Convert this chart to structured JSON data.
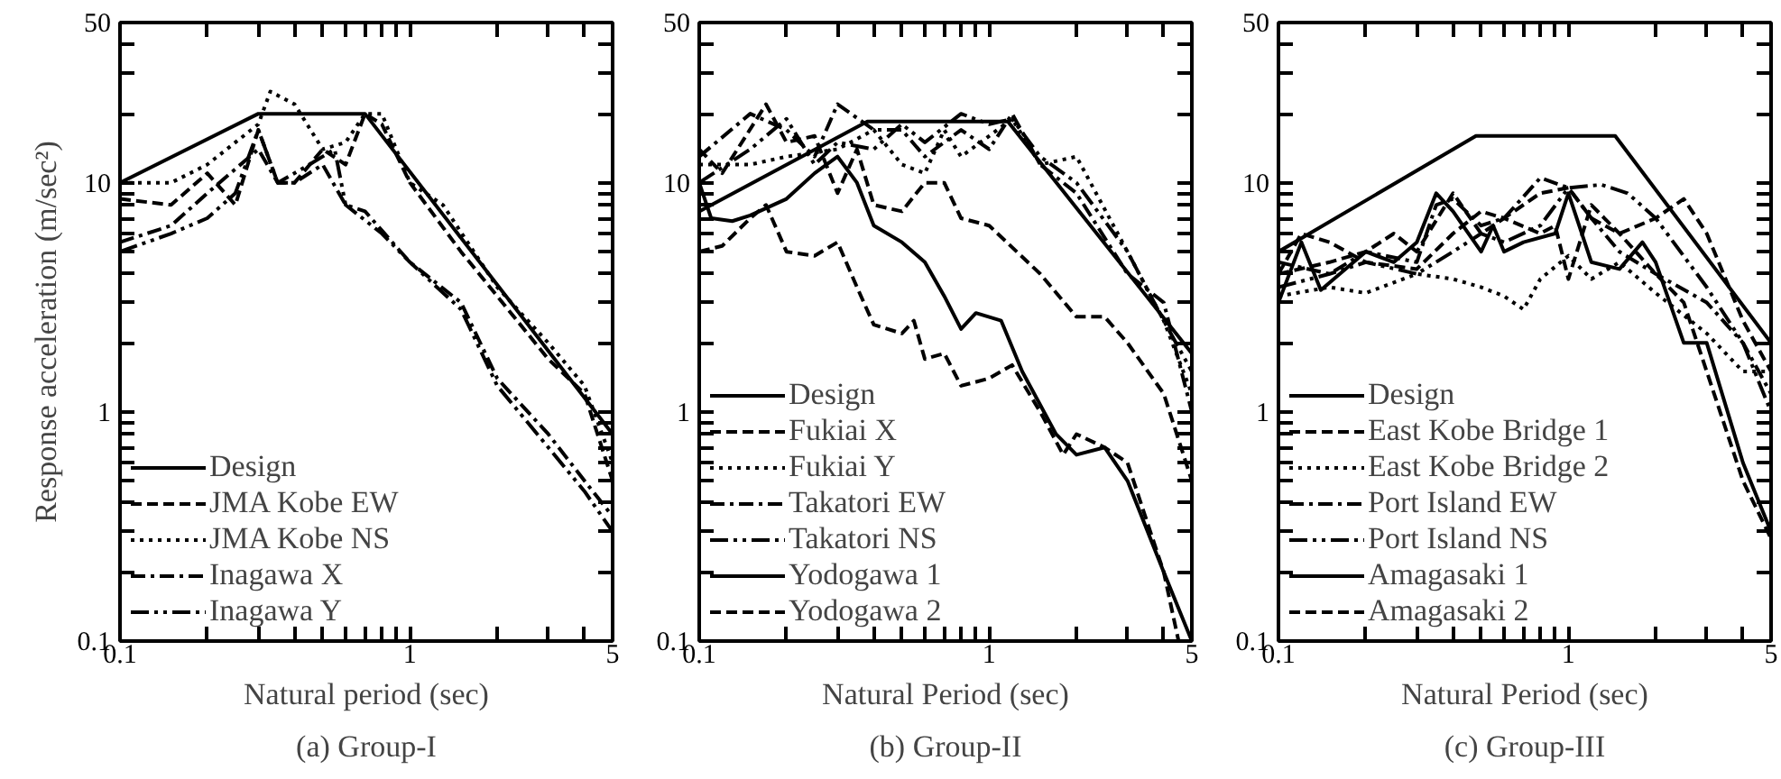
{
  "chart_data": [
    {
      "type": "line",
      "title": "(a) Group-I",
      "xlabel": "Natural period (sec)",
      "ylabel": "Response acceleration (m/sec²)",
      "log": "xy",
      "grid": false,
      "legend": "bottom left",
      "xlim": [
        0.1,
        5
      ],
      "ylim": [
        0.1,
        50
      ],
      "xticks": [
        0.1,
        {
          "value": 0.2,
          "label": null
        },
        {
          "value": 0.3,
          "label": null
        },
        {
          "value": 0.4,
          "label": null
        },
        {
          "value": 0.5,
          "label": null
        },
        {
          "value": 0.6,
          "label": null
        },
        {
          "value": 0.7,
          "label": null
        },
        {
          "value": 0.8,
          "label": null
        },
        {
          "value": 0.9,
          "label": null
        },
        1,
        {
          "value": 2,
          "label": null
        },
        {
          "value": 3,
          "label": null
        },
        {
          "value": 4,
          "label": null
        },
        5
      ],
      "yticks": [
        0.1,
        {
          "value": 0.2,
          "label": null
        },
        {
          "value": 0.3,
          "label": null
        },
        {
          "value": 0.4,
          "label": null
        },
        {
          "value": 0.5,
          "label": null
        },
        {
          "value": 0.6,
          "label": null
        },
        {
          "value": 0.7,
          "label": null
        },
        {
          "value": 0.8,
          "label": null
        },
        {
          "value": 0.9,
          "label": null
        },
        1,
        {
          "value": 2,
          "label": null
        },
        {
          "value": 3,
          "label": null
        },
        {
          "value": 4,
          "label": null
        },
        {
          "value": 5,
          "label": null
        },
        {
          "value": 6,
          "label": null
        },
        {
          "value": 7,
          "label": null
        },
        {
          "value": 8,
          "label": null
        },
        {
          "value": 9,
          "label": null
        },
        10,
        {
          "value": 20,
          "label": null
        },
        {
          "value": 30,
          "label": null
        },
        {
          "value": 40,
          "label": null
        },
        50
      ],
      "series": [
        {
          "name": "Design",
          "color": "#000000",
          "line_style": "solid",
          "x": [
            0.1,
            0.3,
            0.7,
            5
          ],
          "values": [
            10,
            20,
            20,
            0.8
          ]
        },
        {
          "name": "JMA Kobe EW",
          "color": "#000000",
          "line_style": "dashed",
          "x": [
            0.1,
            0.15,
            0.2,
            0.25,
            0.3,
            0.35,
            0.4,
            0.5,
            0.6,
            0.7,
            0.8,
            1,
            1.5,
            2,
            3,
            4,
            5
          ],
          "values": [
            8.5,
            8,
            11,
            8,
            17,
            10,
            10,
            14,
            12,
            20,
            18,
            10,
            5,
            3.2,
            1.7,
            1.2,
            0.5
          ]
        },
        {
          "name": "JMA Kobe NS",
          "color": "#000000",
          "line_style": "dotted",
          "x": [
            0.1,
            0.15,
            0.2,
            0.3,
            0.33,
            0.4,
            0.5,
            0.6,
            0.7,
            0.8,
            1,
            1.3,
            2,
            3,
            4,
            5
          ],
          "values": [
            10,
            10,
            12,
            18,
            25,
            22,
            14,
            15,
            20,
            20,
            10,
            8,
            3.5,
            2,
            1.3,
            0.6
          ]
        },
        {
          "name": "Inagawa X",
          "color": "#000000",
          "line_style": "dashdot",
          "x": [
            0.1,
            0.15,
            0.2,
            0.3,
            0.35,
            0.4,
            0.5,
            0.6,
            0.7,
            1,
            1.5,
            2,
            3,
            4,
            5
          ],
          "values": [
            5.5,
            6.5,
            9,
            14,
            10,
            10,
            12,
            8,
            7.5,
            4.5,
            3,
            1.4,
            0.8,
            0.5,
            0.35
          ]
        },
        {
          "name": "Inagawa Y",
          "color": "#000000",
          "line_style": "longdashdot",
          "x": [
            0.1,
            0.15,
            0.2,
            0.25,
            0.3,
            0.35,
            0.45,
            0.55,
            0.6,
            0.8,
            1,
            1.5,
            2,
            3,
            4,
            5
          ],
          "values": [
            5,
            6,
            7,
            9,
            17,
            10,
            12,
            14,
            8,
            6,
            4.5,
            2.8,
            1.3,
            0.7,
            0.45,
            0.3
          ]
        }
      ]
    },
    {
      "type": "line",
      "title": "(b) Group-II",
      "xlabel": "Natural Period (sec)",
      "log": "xy",
      "grid": false,
      "legend": "bottom left",
      "xlim": [
        0.1,
        5
      ],
      "ylim": [
        0.1,
        50
      ],
      "xticks": [
        0.1,
        {
          "value": 0.2,
          "label": null
        },
        {
          "value": 0.3,
          "label": null
        },
        {
          "value": 0.4,
          "label": null
        },
        {
          "value": 0.5,
          "label": null
        },
        {
          "value": 0.6,
          "label": null
        },
        {
          "value": 0.7,
          "label": null
        },
        {
          "value": 0.8,
          "label": null
        },
        {
          "value": 0.9,
          "label": null
        },
        1,
        {
          "value": 2,
          "label": null
        },
        {
          "value": 3,
          "label": null
        },
        {
          "value": 4,
          "label": null
        },
        5
      ],
      "yticks": [
        0.1,
        {
          "value": 0.2,
          "label": null
        },
        {
          "value": 0.3,
          "label": null
        },
        {
          "value": 0.4,
          "label": null
        },
        {
          "value": 0.5,
          "label": null
        },
        {
          "value": 0.6,
          "label": null
        },
        {
          "value": 0.7,
          "label": null
        },
        {
          "value": 0.8,
          "label": null
        },
        {
          "value": 0.9,
          "label": null
        },
        1,
        {
          "value": 2,
          "label": null
        },
        {
          "value": 3,
          "label": null
        },
        {
          "value": 4,
          "label": null
        },
        {
          "value": 5,
          "label": null
        },
        {
          "value": 6,
          "label": null
        },
        {
          "value": 7,
          "label": null
        },
        {
          "value": 8,
          "label": null
        },
        {
          "value": 9,
          "label": null
        },
        10,
        {
          "value": 20,
          "label": null
        },
        {
          "value": 30,
          "label": null
        },
        {
          "value": 40,
          "label": null
        },
        50
      ],
      "series": [
        {
          "name": "Design",
          "color": "#000000",
          "line_style": "solid",
          "x": [
            0.1,
            0.38,
            1.16,
            5
          ],
          "values": [
            7.5,
            18.5,
            18.5,
            1.8
          ]
        },
        {
          "name": "Fukiai X",
          "color": "#000000",
          "line_style": "dashed",
          "x": [
            0.1,
            0.12,
            0.17,
            0.2,
            0.25,
            0.3,
            0.35,
            0.4,
            0.5,
            0.6,
            0.7,
            0.8,
            1,
            1.5,
            2,
            2.5,
            3,
            4,
            5
          ],
          "values": [
            14,
            11,
            22,
            15,
            16,
            9,
            14,
            8,
            7.5,
            10,
            10,
            7,
            6.5,
            4,
            2.6,
            2.6,
            2,
            1.2,
            0.5
          ]
        },
        {
          "name": "Fukiai Y",
          "color": "#000000",
          "line_style": "dotted",
          "x": [
            0.1,
            0.15,
            0.2,
            0.3,
            0.4,
            0.5,
            0.6,
            0.7,
            0.8,
            1,
            1.2,
            1.5,
            2,
            3,
            4,
            5
          ],
          "values": [
            12,
            12,
            13,
            14,
            17,
            12,
            11,
            17,
            13,
            16,
            19,
            12,
            13,
            5,
            2.5,
            1.2
          ]
        },
        {
          "name": "Takatori EW",
          "color": "#000000",
          "line_style": "dashdot",
          "x": [
            0.1,
            0.15,
            0.2,
            0.25,
            0.3,
            0.4,
            0.5,
            0.6,
            0.8,
            1,
            1.2,
            1.5,
            2,
            3,
            4,
            5
          ],
          "values": [
            13,
            20,
            17,
            13,
            22,
            17,
            17,
            13,
            17,
            14,
            20,
            12,
            9,
            4,
            3,
            1
          ]
        },
        {
          "name": "Takatori NS",
          "color": "#000000",
          "line_style": "longdashdot",
          "x": [
            0.1,
            0.15,
            0.2,
            0.25,
            0.3,
            0.4,
            0.5,
            0.6,
            0.8,
            1,
            1.2,
            1.5,
            2,
            3,
            4,
            5
          ],
          "values": [
            10,
            14,
            19,
            12,
            15,
            14,
            18,
            15,
            20,
            18,
            19,
            13,
            10,
            5,
            2.5,
            1.5
          ]
        },
        {
          "name": "Yodogawa 1",
          "color": "#000000",
          "line_style": "solid",
          "x": [
            0.1,
            0.11,
            0.13,
            0.15,
            0.2,
            0.25,
            0.3,
            0.35,
            0.4,
            0.5,
            0.6,
            0.7,
            0.8,
            0.9,
            1.1,
            1.3,
            1.7,
            2,
            2.5,
            3,
            4,
            5
          ],
          "values": [
            10,
            7,
            6.8,
            7.2,
            8.5,
            11,
            13,
            10,
            6.5,
            5.5,
            4.5,
            3.2,
            2.3,
            2.7,
            2.5,
            1.5,
            0.8,
            0.65,
            0.7,
            0.5,
            0.2,
            0.1
          ]
        },
        {
          "name": "Yodogawa 2",
          "color": "#000000",
          "line_style": "dashed",
          "x": [
            0.1,
            0.12,
            0.15,
            0.17,
            0.2,
            0.25,
            0.3,
            0.35,
            0.4,
            0.5,
            0.55,
            0.6,
            0.7,
            0.8,
            1,
            1.2,
            1.5,
            1.8,
            2,
            2.5,
            3,
            4,
            4.5
          ],
          "values": [
            5,
            5.3,
            7,
            8,
            5,
            4.8,
            5.5,
            3.5,
            2.4,
            2.2,
            2.5,
            1.7,
            1.8,
            1.3,
            1.4,
            1.6,
            1,
            0.65,
            0.8,
            0.7,
            0.6,
            0.2,
            0.1
          ]
        }
      ]
    },
    {
      "type": "line",
      "title": "(c) Group-III",
      "xlabel": "Natural Period (sec)",
      "log": "xy",
      "grid": false,
      "legend": "bottom left",
      "xlim": [
        0.1,
        5
      ],
      "ylim": [
        0.1,
        50
      ],
      "xticks": [
        0.1,
        {
          "value": 0.2,
          "label": null
        },
        {
          "value": 0.3,
          "label": null
        },
        {
          "value": 0.4,
          "label": null
        },
        {
          "value": 0.5,
          "label": null
        },
        {
          "value": 0.6,
          "label": null
        },
        {
          "value": 0.7,
          "label": null
        },
        {
          "value": 0.8,
          "label": null
        },
        {
          "value": 0.9,
          "label": null
        },
        1,
        {
          "value": 2,
          "label": null
        },
        {
          "value": 3,
          "label": null
        },
        {
          "value": 4,
          "label": null
        },
        5
      ],
      "yticks": [
        0.1,
        {
          "value": 0.2,
          "label": null
        },
        {
          "value": 0.3,
          "label": null
        },
        {
          "value": 0.4,
          "label": null
        },
        {
          "value": 0.5,
          "label": null
        },
        {
          "value": 0.6,
          "label": null
        },
        {
          "value": 0.7,
          "label": null
        },
        {
          "value": 0.8,
          "label": null
        },
        {
          "value": 0.9,
          "label": null
        },
        1,
        {
          "value": 2,
          "label": null
        },
        {
          "value": 3,
          "label": null
        },
        {
          "value": 4,
          "label": null
        },
        {
          "value": 5,
          "label": null
        },
        {
          "value": 6,
          "label": null
        },
        {
          "value": 7,
          "label": null
        },
        {
          "value": 8,
          "label": null
        },
        {
          "value": 9,
          "label": null
        },
        10,
        {
          "value": 20,
          "label": null
        },
        {
          "value": 30,
          "label": null
        },
        {
          "value": 40,
          "label": null
        },
        50
      ],
      "series": [
        {
          "name": "Design",
          "color": "#000000",
          "line_style": "solid",
          "x": [
            0.1,
            0.48,
            1.45,
            5
          ],
          "values": [
            5,
            16,
            16,
            2
          ]
        },
        {
          "name": "East Kobe Bridge 1",
          "color": "#000000",
          "line_style": "dashed",
          "x": [
            0.1,
            0.12,
            0.15,
            0.2,
            0.3,
            0.4,
            0.5,
            0.6,
            0.8,
            1,
            1.2,
            1.5,
            2,
            2.5,
            3,
            4,
            5
          ],
          "values": [
            4,
            6,
            5.5,
            4.5,
            4.2,
            6,
            7.5,
            7,
            9,
            9.5,
            7,
            6,
            7,
            8.5,
            6,
            2.5,
            1.5
          ]
        },
        {
          "name": "East Kobe Bridge 2",
          "color": "#000000",
          "line_style": "dotted",
          "x": [
            0.1,
            0.15,
            0.2,
            0.3,
            0.4,
            0.5,
            0.6,
            0.7,
            0.8,
            1,
            1.2,
            1.5,
            2,
            3,
            4,
            5
          ],
          "values": [
            3.2,
            3.5,
            3.3,
            4,
            3.8,
            3.5,
            3.2,
            2.8,
            3.8,
            4.8,
            3.8,
            4.5,
            3.3,
            2.2,
            1.5,
            1.5
          ]
        },
        {
          "name": "Port Island EW",
          "color": "#000000",
          "line_style": "dashdot",
          "x": [
            0.1,
            0.15,
            0.2,
            0.3,
            0.35,
            0.4,
            0.5,
            0.6,
            0.8,
            1,
            1.2,
            1.5,
            2,
            3,
            4,
            5
          ],
          "values": [
            4.5,
            4,
            5,
            4.5,
            8,
            8.5,
            6.5,
            7,
            10.5,
            9.5,
            7,
            5,
            4,
            3,
            2,
            1.2
          ]
        },
        {
          "name": "Port Island NS",
          "color": "#000000",
          "line_style": "longdashdot",
          "x": [
            0.1,
            0.15,
            0.2,
            0.3,
            0.4,
            0.5,
            0.6,
            0.8,
            1,
            1.3,
            1.6,
            2,
            3,
            4,
            5
          ],
          "values": [
            3.5,
            4,
            4.5,
            4,
            5,
            6,
            5.5,
            6.5,
            9.5,
            9.8,
            9,
            7,
            3.5,
            2,
            1
          ]
        },
        {
          "name": "Amagasaki 1",
          "color": "#000000",
          "line_style": "solid",
          "x": [
            0.1,
            0.12,
            0.14,
            0.2,
            0.25,
            0.3,
            0.35,
            0.4,
            0.5,
            0.55,
            0.6,
            0.7,
            0.9,
            1,
            1.2,
            1.5,
            1.8,
            2,
            2.5,
            3,
            4,
            5
          ],
          "values": [
            3,
            5.5,
            3.4,
            5,
            4.5,
            5.5,
            9,
            7.5,
            5,
            6.5,
            5,
            5.5,
            6,
            9,
            4.5,
            4.2,
            5.5,
            4.5,
            2,
            2,
            0.6,
            0.3
          ]
        },
        {
          "name": "Amagasaki 2",
          "color": "#000000",
          "line_style": "dashed",
          "x": [
            0.1,
            0.15,
            0.2,
            0.25,
            0.3,
            0.4,
            0.5,
            0.6,
            0.8,
            0.9,
            1,
            1.2,
            1.5,
            2,
            2.5,
            3,
            4,
            5
          ],
          "values": [
            4,
            4.5,
            5,
            6,
            5,
            9,
            6,
            7,
            6,
            6.5,
            3.8,
            8,
            6,
            4,
            3,
            1.5,
            0.5,
            0.28
          ]
        }
      ]
    }
  ]
}
